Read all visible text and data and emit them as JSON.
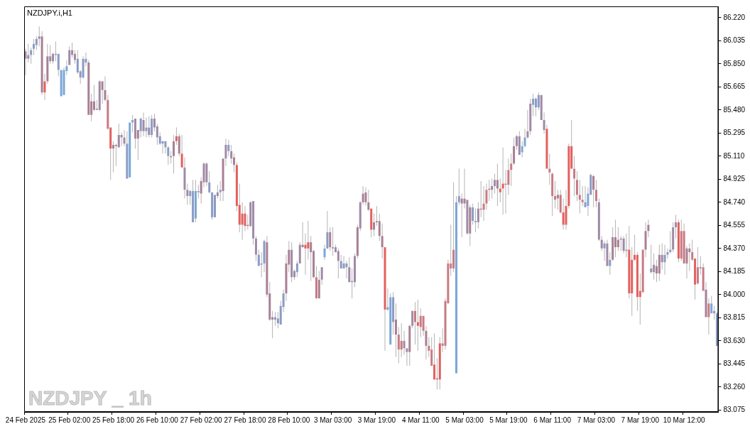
{
  "chart_data": {
    "type": "candlestick",
    "title": "NZDJPY.i,H1",
    "annotations": [
      "NZDJPY _ 1h"
    ],
    "ylim": [
      83.06,
      86.31
    ],
    "yticks": [
      {
        "value": 83.075,
        "label": "83.075"
      },
      {
        "value": 83.26,
        "label": "83.260"
      },
      {
        "value": 83.445,
        "label": "83.445"
      },
      {
        "value": 83.63,
        "label": "83.630"
      },
      {
        "value": 83.815,
        "label": "83.815"
      },
      {
        "value": 84.0,
        "label": "84.000"
      },
      {
        "value": 84.185,
        "label": "84.185"
      },
      {
        "value": 84.37,
        "label": "84.370"
      },
      {
        "value": 84.555,
        "label": "84.555"
      },
      {
        "value": 84.74,
        "label": "84.740"
      },
      {
        "value": 84.925,
        "label": "84.925"
      },
      {
        "value": 85.11,
        "label": "85.110"
      },
      {
        "value": 85.295,
        "label": "85.295"
      },
      {
        "value": 85.48,
        "label": "85.480"
      },
      {
        "value": 85.665,
        "label": "85.665"
      },
      {
        "value": 85.85,
        "label": "85.850"
      },
      {
        "value": 86.035,
        "label": "86.035"
      },
      {
        "value": 86.22,
        "label": "86.220"
      }
    ],
    "categories": [
      "24 Feb 2025",
      null,
      null,
      null,
      null,
      null,
      null,
      null,
      null,
      null,
      null,
      null,
      null,
      null,
      null,
      null,
      "25 Feb 02:00",
      null,
      null,
      null,
      null,
      null,
      null,
      null,
      null,
      null,
      null,
      null,
      null,
      null,
      null,
      null,
      "25 Feb 18:00",
      null,
      null,
      null,
      null,
      null,
      null,
      null,
      null,
      null,
      null,
      null,
      null,
      null,
      null,
      null,
      "26 Feb 10:00",
      null,
      null,
      null,
      null,
      null,
      null,
      null,
      null,
      null,
      null,
      null,
      null,
      null,
      null,
      null,
      "27 Feb 02:00",
      null,
      null,
      null,
      null,
      null,
      null,
      null,
      null,
      null,
      null,
      null,
      null,
      null,
      null,
      null,
      "27 Feb 18:00",
      null,
      null,
      null,
      null,
      null,
      null,
      null,
      null,
      null,
      null,
      null,
      null,
      null,
      null,
      null,
      "28 Feb 10:00",
      null,
      null,
      null,
      null,
      null,
      null,
      null,
      null,
      null,
      null,
      null,
      null,
      null,
      null,
      null,
      "3 Mar 03:00",
      null,
      null,
      null,
      null,
      null,
      null,
      null,
      null,
      null,
      null,
      null,
      null,
      null,
      null,
      null,
      "3 Mar 19:00",
      null,
      null,
      null,
      null,
      null,
      null,
      null,
      null,
      null,
      null,
      null,
      null,
      null,
      null,
      null,
      "4 Mar 11:00",
      null,
      null,
      null,
      null,
      null,
      null,
      null,
      null,
      null,
      null,
      null,
      null,
      null,
      null,
      null,
      "5 Mar 03:00",
      null,
      null,
      null,
      null,
      null,
      null,
      null,
      null,
      null,
      null,
      null,
      null,
      null,
      null,
      null,
      "5 Mar 19:00",
      null,
      null,
      null,
      null,
      null,
      null,
      null,
      null,
      null,
      null,
      null,
      null,
      null,
      null,
      null,
      "6 Mar 11:00",
      null,
      null,
      null,
      null,
      null,
      null,
      null,
      null,
      null,
      null,
      null,
      null,
      null,
      null,
      null,
      "7 Mar 03:00",
      null,
      null,
      null,
      null,
      null,
      null,
      null,
      null,
      null,
      null,
      null,
      null,
      null,
      null,
      null,
      "7 Mar 19:00",
      null,
      null,
      null,
      null,
      null,
      null,
      null,
      null,
      null,
      null,
      null,
      null,
      null,
      null,
      null,
      "10 Mar 12:00",
      null,
      null,
      null,
      null,
      null,
      null,
      null,
      null,
      null,
      null,
      null,
      null
    ],
    "ohlc": [
      [
        85.89,
        85.97,
        85.76,
        85.95
      ],
      [
        85.89,
        86.01,
        85.86,
        85.92
      ],
      [
        85.92,
        85.98,
        85.85,
        85.96
      ],
      [
        85.97,
        86.05,
        85.92,
        86.01
      ],
      [
        86.0,
        86.07,
        85.96,
        86.05
      ],
      [
        86.05,
        86.15,
        85.99,
        86.07
      ],
      [
        86.07,
        86.11,
        85.6,
        85.62
      ],
      [
        85.71,
        85.77,
        85.56,
        85.62
      ],
      [
        85.91,
        86.01,
        85.69,
        85.71
      ],
      [
        85.87,
        86.0,
        85.85,
        85.91
      ],
      [
        85.87,
        85.94,
        85.85,
        85.93
      ],
      [
        85.92,
        86.03,
        85.87,
        85.93
      ],
      [
        85.8,
        85.93,
        85.75,
        85.93
      ],
      [
        85.59,
        85.8,
        85.59,
        85.8
      ],
      [
        85.6,
        85.82,
        85.6,
        85.8
      ],
      [
        85.79,
        85.88,
        85.76,
        85.83
      ],
      [
        85.84,
        85.99,
        85.84,
        85.96
      ],
      [
        85.92,
        86.02,
        85.9,
        85.96
      ],
      [
        85.88,
        85.96,
        85.85,
        85.93
      ],
      [
        85.78,
        85.96,
        85.77,
        85.89
      ],
      [
        85.74,
        85.8,
        85.69,
        85.79
      ],
      [
        85.74,
        85.91,
        85.73,
        85.89
      ],
      [
        85.86,
        85.94,
        85.83,
        85.89
      ],
      [
        85.86,
        85.88,
        85.44,
        85.44
      ],
      [
        85.55,
        85.61,
        85.39,
        85.44
      ],
      [
        85.55,
        85.68,
        85.47,
        85.48
      ],
      [
        85.48,
        85.56,
        85.48,
        85.49
      ],
      [
        85.48,
        85.72,
        85.47,
        85.71
      ],
      [
        85.71,
        85.71,
        85.53,
        85.64
      ],
      [
        85.64,
        85.75,
        85.55,
        85.56
      ],
      [
        85.56,
        85.6,
        85.32,
        85.33
      ],
      [
        85.34,
        85.34,
        84.92,
        85.17
      ],
      [
        85.2,
        85.23,
        84.98,
        85.17
      ],
      [
        85.19,
        85.21,
        85.03,
        85.2
      ],
      [
        85.18,
        85.37,
        85.18,
        85.28
      ],
      [
        85.26,
        85.3,
        85.19,
        85.28
      ],
      [
        85.21,
        85.32,
        85.19,
        85.26
      ],
      [
        84.93,
        85.31,
        84.93,
        85.21
      ],
      [
        84.94,
        85.38,
        84.94,
        85.38
      ],
      [
        85.38,
        85.44,
        85.3,
        85.4
      ],
      [
        85.25,
        85.41,
        85.17,
        85.41
      ],
      [
        85.32,
        85.32,
        85.08,
        85.25
      ],
      [
        85.31,
        85.42,
        85.26,
        85.41
      ],
      [
        85.31,
        85.46,
        85.27,
        85.4
      ],
      [
        85.31,
        85.42,
        85.26,
        85.34
      ],
      [
        85.28,
        85.43,
        85.26,
        85.34
      ],
      [
        85.28,
        85.44,
        85.26,
        85.41
      ],
      [
        85.34,
        85.45,
        85.31,
        85.41
      ],
      [
        85.26,
        85.37,
        85.2,
        85.35
      ],
      [
        85.21,
        85.3,
        85.2,
        85.27
      ],
      [
        85.21,
        85.23,
        85.13,
        85.23
      ],
      [
        85.18,
        85.23,
        85.13,
        85.23
      ],
      [
        85.11,
        85.19,
        85.04,
        85.18
      ],
      [
        85.1,
        85.15,
        85.05,
        85.11
      ],
      [
        85.23,
        85.28,
        84.97,
        85.11
      ],
      [
        85.27,
        85.34,
        85.2,
        85.23
      ],
      [
        85.27,
        85.29,
        85.11,
        85.13
      ],
      [
        85.13,
        85.28,
        85.02,
        85.02
      ],
      [
        84.84,
        85.1,
        84.77,
        85.02
      ],
      [
        84.79,
        84.89,
        84.72,
        84.84
      ],
      [
        84.79,
        84.84,
        84.72,
        84.83
      ],
      [
        84.58,
        84.92,
        84.58,
        84.83
      ],
      [
        84.61,
        84.92,
        84.58,
        84.83
      ],
      [
        84.82,
        84.88,
        84.77,
        84.83
      ],
      [
        84.91,
        84.94,
        84.73,
        84.81
      ],
      [
        84.9,
        85.06,
        84.86,
        85.05
      ],
      [
        84.9,
        85.06,
        84.87,
        85.05
      ],
      [
        84.82,
        84.99,
        84.81,
        84.9
      ],
      [
        84.62,
        84.82,
        84.6,
        84.82
      ],
      [
        84.62,
        84.8,
        84.62,
        84.8
      ],
      [
        84.79,
        84.88,
        84.77,
        84.82
      ],
      [
        84.82,
        84.91,
        84.75,
        84.84
      ],
      [
        85.09,
        85.09,
        84.75,
        84.83
      ],
      [
        85.09,
        85.25,
        85.03,
        85.2
      ],
      [
        85.15,
        85.24,
        85.11,
        85.2
      ],
      [
        85.09,
        85.2,
        85.05,
        85.15
      ],
      [
        85.1,
        85.13,
        84.98,
        85.04
      ],
      [
        85.04,
        85.06,
        84.67,
        84.71
      ],
      [
        84.72,
        84.89,
        84.5,
        84.56
      ],
      [
        84.65,
        84.74,
        84.44,
        84.56
      ],
      [
        84.65,
        84.71,
        84.51,
        84.55
      ],
      [
        84.56,
        84.64,
        84.52,
        84.55
      ],
      [
        84.55,
        84.75,
        84.54,
        84.74
      ],
      [
        84.45,
        84.75,
        84.4,
        84.75
      ],
      [
        84.32,
        84.47,
        84.27,
        84.45
      ],
      [
        84.23,
        84.36,
        84.23,
        84.32
      ],
      [
        84.24,
        84.34,
        84.14,
        84.25
      ],
      [
        84.25,
        84.44,
        84.18,
        84.43
      ],
      [
        84.42,
        84.47,
        83.98,
        84.0
      ],
      [
        84.01,
        84.1,
        83.79,
        83.8
      ],
      [
        83.82,
        83.87,
        83.65,
        83.8
      ],
      [
        83.8,
        83.86,
        83.75,
        83.82
      ],
      [
        83.77,
        83.86,
        83.73,
        83.81
      ],
      [
        83.76,
        83.95,
        83.76,
        83.91
      ],
      [
        83.9,
        84.04,
        83.86,
        84.01
      ],
      [
        84.25,
        84.32,
        83.95,
        84.01
      ],
      [
        84.36,
        84.43,
        84.18,
        84.24
      ],
      [
        84.14,
        84.42,
        84.1,
        84.36
      ],
      [
        84.14,
        84.2,
        84.12,
        84.19
      ],
      [
        84.18,
        84.27,
        84.14,
        84.25
      ],
      [
        84.25,
        84.42,
        84.25,
        84.4
      ],
      [
        84.4,
        84.58,
        84.38,
        84.38
      ],
      [
        84.4,
        84.49,
        84.16,
        84.37
      ],
      [
        84.42,
        84.59,
        84.28,
        84.37
      ],
      [
        84.42,
        84.47,
        84.11,
        84.34
      ],
      [
        84.35,
        84.36,
        84.13,
        84.14
      ],
      [
        84.14,
        84.23,
        83.97,
        83.97
      ],
      [
        84.12,
        84.19,
        83.97,
        83.97
      ],
      [
        84.12,
        84.22,
        84.08,
        84.22
      ],
      [
        84.3,
        84.4,
        84.28,
        84.37
      ],
      [
        84.37,
        84.67,
        84.37,
        84.5
      ],
      [
        84.5,
        84.54,
        84.35,
        84.38
      ],
      [
        84.37,
        84.54,
        84.31,
        84.38
      ],
      [
        84.34,
        84.4,
        84.34,
        84.38
      ],
      [
        84.27,
        84.37,
        84.13,
        84.35
      ],
      [
        84.21,
        84.32,
        84.21,
        84.27
      ],
      [
        84.21,
        84.31,
        84.21,
        84.25
      ],
      [
        84.22,
        84.27,
        84.13,
        84.25
      ],
      [
        84.1,
        84.3,
        84.1,
        84.22
      ],
      [
        84.1,
        84.21,
        83.97,
        84.11
      ],
      [
        84.1,
        84.33,
        84.06,
        84.31
      ],
      [
        84.54,
        84.56,
        84.29,
        84.31
      ],
      [
        84.53,
        84.75,
        84.51,
        84.74
      ],
      [
        84.81,
        84.87,
        84.72,
        84.74
      ],
      [
        84.82,
        84.86,
        84.71,
        84.74
      ],
      [
        84.74,
        84.84,
        84.67,
        84.68
      ],
      [
        84.69,
        84.69,
        84.46,
        84.52
      ],
      [
        84.58,
        84.65,
        84.47,
        84.52
      ],
      [
        84.59,
        84.71,
        84.55,
        84.58
      ],
      [
        84.59,
        84.65,
        84.43,
        84.47
      ],
      [
        84.47,
        84.57,
        84.29,
        84.38
      ],
      [
        84.38,
        84.38,
        83.55,
        83.88
      ],
      [
        83.88,
        84.05,
        83.87,
        83.9
      ],
      [
        83.6,
        84.01,
        83.6,
        83.98
      ],
      [
        83.78,
        84.02,
        83.68,
        83.98
      ],
      [
        83.8,
        83.93,
        83.5,
        83.68
      ],
      [
        83.68,
        83.74,
        83.45,
        83.56
      ],
      [
        83.63,
        83.77,
        83.5,
        83.56
      ],
      [
        83.57,
        83.71,
        83.52,
        83.63
      ],
      [
        83.54,
        83.57,
        83.43,
        83.57
      ],
      [
        83.75,
        83.76,
        83.43,
        83.54
      ],
      [
        83.75,
        83.87,
        83.73,
        83.87
      ],
      [
        83.87,
        83.94,
        83.6,
        83.78
      ],
      [
        83.78,
        83.96,
        83.55,
        83.75
      ],
      [
        83.83,
        83.89,
        83.66,
        83.74
      ],
      [
        83.83,
        83.83,
        83.67,
        83.71
      ],
      [
        83.71,
        83.75,
        83.48,
        83.59
      ],
      [
        83.59,
        83.66,
        83.5,
        83.55
      ],
      [
        83.56,
        83.66,
        83.43,
        83.43
      ],
      [
        83.44,
        83.69,
        83.32,
        83.32
      ],
      [
        83.33,
        83.49,
        83.24,
        83.32
      ],
      [
        83.61,
        83.66,
        83.24,
        83.32
      ],
      [
        83.61,
        83.73,
        83.54,
        83.59
      ],
      [
        83.95,
        83.97,
        83.56,
        83.59
      ],
      [
        84.25,
        84.28,
        83.93,
        83.93
      ],
      [
        84.25,
        84.56,
        84.15,
        84.21
      ],
      [
        84.36,
        84.9,
        84.18,
        84.21
      ],
      [
        83.37,
        84.79,
        83.37,
        84.74
      ],
      [
        84.74,
        85.01,
        84.72,
        84.79
      ],
      [
        84.77,
        84.81,
        84.46,
        84.73
      ],
      [
        84.77,
        85.01,
        84.69,
        84.73
      ],
      [
        84.49,
        84.76,
        84.48,
        84.76
      ],
      [
        84.7,
        84.72,
        84.39,
        84.49
      ],
      [
        84.59,
        84.73,
        84.56,
        84.7
      ],
      [
        84.58,
        84.69,
        84.5,
        84.59
      ],
      [
        84.58,
        84.74,
        84.53,
        84.69
      ],
      [
        84.69,
        84.91,
        84.62,
        84.68
      ],
      [
        84.73,
        84.87,
        84.59,
        84.68
      ],
      [
        84.84,
        84.89,
        84.68,
        84.73
      ],
      [
        84.85,
        84.92,
        84.75,
        84.84
      ],
      [
        84.87,
        84.93,
        84.77,
        84.84
      ],
      [
        84.87,
        84.97,
        84.81,
        84.92
      ],
      [
        84.92,
        85.05,
        84.71,
        84.85
      ],
      [
        84.85,
        84.93,
        84.74,
        84.82
      ],
      [
        84.89,
        85.18,
        84.64,
        84.85
      ],
      [
        84.89,
        85.0,
        84.65,
        84.88
      ],
      [
        85.0,
        85.09,
        84.8,
        84.88
      ],
      [
        85.05,
        85.13,
        84.87,
        85.0
      ],
      [
        85.19,
        85.26,
        85.04,
        85.05
      ],
      [
        85.19,
        85.28,
        85.16,
        85.27
      ],
      [
        85.12,
        85.31,
        85.12,
        85.27
      ],
      [
        85.14,
        85.23,
        85.1,
        85.19
      ],
      [
        85.19,
        85.33,
        85.18,
        85.26
      ],
      [
        85.26,
        85.48,
        85.25,
        85.31
      ],
      [
        85.31,
        85.57,
        85.28,
        85.53
      ],
      [
        85.52,
        85.61,
        85.43,
        85.57
      ],
      [
        85.5,
        85.58,
        85.43,
        85.57
      ],
      [
        85.5,
        85.62,
        85.48,
        85.6
      ],
      [
        85.4,
        85.6,
        85.4,
        85.6
      ],
      [
        85.32,
        85.46,
        85.29,
        85.4
      ],
      [
        85.33,
        85.36,
        85.01,
        85.01
      ],
      [
        85.01,
        85.13,
        84.88,
        84.98
      ],
      [
        84.97,
        84.98,
        84.63,
        84.79
      ],
      [
        84.79,
        84.91,
        84.69,
        84.76
      ],
      [
        84.8,
        84.84,
        84.68,
        84.77
      ],
      [
        84.8,
        84.84,
        84.65,
        84.66
      ],
      [
        84.66,
        84.77,
        84.52,
        84.56
      ],
      [
        84.71,
        84.84,
        84.52,
        84.56
      ],
      [
        85.19,
        85.21,
        84.69,
        84.71
      ],
      [
        85.19,
        85.4,
        85.01,
        85.01
      ],
      [
        85.01,
        85.11,
        84.79,
        84.93
      ],
      [
        84.92,
        84.99,
        84.75,
        84.8
      ],
      [
        84.8,
        84.92,
        84.65,
        84.76
      ],
      [
        84.76,
        84.87,
        84.71,
        84.74
      ],
      [
        84.7,
        84.87,
        84.7,
        84.74
      ],
      [
        84.71,
        84.86,
        84.63,
        84.81
      ],
      [
        84.8,
        84.97,
        84.8,
        84.96
      ],
      [
        84.95,
        84.96,
        84.7,
        84.84
      ],
      [
        84.84,
        84.92,
        84.7,
        84.75
      ],
      [
        84.44,
        84.77,
        84.43,
        84.74
      ],
      [
        84.37,
        84.47,
        84.35,
        84.44
      ],
      [
        84.37,
        84.43,
        84.27,
        84.41
      ],
      [
        84.23,
        84.44,
        84.23,
        84.41
      ],
      [
        84.23,
        84.34,
        84.16,
        84.28
      ],
      [
        84.46,
        84.54,
        84.27,
        84.28
      ],
      [
        84.46,
        84.6,
        84.3,
        84.38
      ],
      [
        84.44,
        84.54,
        84.35,
        84.38
      ],
      [
        84.44,
        84.47,
        84.35,
        84.45
      ],
      [
        84.35,
        84.47,
        84.33,
        84.45
      ],
      [
        84.35,
        84.49,
        84.3,
        84.36
      ],
      [
        84.36,
        84.55,
        83.97,
        84.01
      ],
      [
        84.28,
        84.38,
        83.83,
        84.01
      ],
      [
        84.32,
        84.48,
        84.27,
        84.28
      ],
      [
        84.32,
        84.34,
        83.87,
        83.98
      ],
      [
        84.03,
        84.17,
        83.76,
        83.98
      ],
      [
        84.36,
        84.36,
        84.01,
        84.02
      ],
      [
        84.51,
        84.58,
        84.3,
        84.36
      ],
      [
        84.56,
        84.6,
        84.46,
        84.51
      ],
      [
        84.18,
        84.4,
        84.17,
        84.21
      ],
      [
        84.18,
        84.33,
        84.12,
        84.24
      ],
      [
        84.23,
        84.28,
        84.1,
        84.17
      ],
      [
        84.32,
        84.4,
        84.11,
        84.17
      ],
      [
        84.26,
        84.41,
        84.2,
        84.32
      ],
      [
        84.26,
        84.4,
        84.16,
        84.32
      ],
      [
        84.32,
        84.37,
        84.29,
        84.34
      ],
      [
        84.34,
        84.51,
        84.33,
        84.36
      ],
      [
        84.36,
        84.58,
        84.34,
        84.54
      ],
      [
        84.54,
        84.64,
        84.45,
        84.58
      ],
      [
        84.58,
        84.6,
        84.26,
        84.29
      ],
      [
        84.51,
        84.6,
        84.27,
        84.29
      ],
      [
        84.51,
        84.57,
        84.25,
        84.25
      ],
      [
        84.37,
        84.39,
        84.13,
        84.25
      ],
      [
        84.37,
        84.41,
        84.19,
        84.34
      ],
      [
        84.34,
        84.44,
        84.27,
        84.28
      ],
      [
        84.29,
        84.29,
        83.96,
        84.08
      ],
      [
        84.22,
        84.38,
        84.08,
        84.09
      ],
      [
        84.22,
        84.31,
        84.16,
        84.21
      ],
      [
        84.22,
        84.25,
        84.03,
        84.03
      ],
      [
        84.04,
        84.1,
        83.82,
        83.82
      ],
      [
        83.93,
        83.97,
        83.68,
        83.82
      ],
      [
        83.85,
        83.99,
        83.85,
        83.93
      ],
      [
        83.85,
        83.91,
        83.8,
        83.87
      ],
      [
        83.59,
        83.86,
        83.59,
        83.85
      ]
    ],
    "colors": [
      "#a08aa6",
      "#a08aa6",
      "#8b9bc4",
      "#8b9bc4",
      "#8b9bc4",
      "#a08aa6",
      "#a88094",
      "#e2605e",
      "#a88094",
      "#a08aa6",
      "#a08aa6",
      "#8b9bc4",
      "#8b9bc4",
      "#7ba7d7",
      "#7ba7d7",
      "#7ba7d7",
      "#a08aa6",
      "#a08aa6",
      "#a08aa6",
      "#8b9bc4",
      "#8b9bc4",
      "#8b9bc4",
      "#8b9bc4",
      "#a88094",
      "#a88094",
      "#a88094",
      "#a08aa6",
      "#a08aa6",
      "#a88094",
      "#a88094",
      "#c87a84",
      "#e2605e",
      "#a88094",
      "#a08aa6",
      "#a08aa6",
      "#a08aa6",
      "#a08aa6",
      "#8b9bc4",
      "#7ba7d7",
      "#7ba7d7",
      "#a08aa6",
      "#a88094",
      "#8b9bc4",
      "#a08aa6",
      "#8b9bc4",
      "#a08aa6",
      "#8b9bc4",
      "#a08aa6",
      "#a08aa6",
      "#8b9bc4",
      "#8b9bc4",
      "#8b9bc4",
      "#8b9bc4",
      "#a08aa6",
      "#a88094",
      "#e2605e",
      "#a88094",
      "#e2605e",
      "#a08aa6",
      "#a08aa6",
      "#8b9bc4",
      "#8b9bc4",
      "#7ba7d7",
      "#8b9bc4",
      "#a88094",
      "#a08aa6",
      "#a08aa6",
      "#8b9bc4",
      "#8b9bc4",
      "#8b9bc4",
      "#a08aa6",
      "#8b9bc4",
      "#a88094",
      "#a08aa6",
      "#8b9bc4",
      "#a08aa6",
      "#a88094",
      "#e2605e",
      "#e2605e",
      "#e2605e",
      "#e2605e",
      "#a88094",
      "#a08aa6",
      "#a08aa6",
      "#a08aa6",
      "#8b9bc4",
      "#8b9bc4",
      "#8b9bc4",
      "#a88094",
      "#a88094",
      "#a88094",
      "#8b9bc4",
      "#8b9bc4",
      "#8b9bc4",
      "#8b9bc4",
      "#a88094",
      "#a88094",
      "#a08aa6",
      "#a08aa6",
      "#8b9bc4",
      "#a08aa6",
      "#a88094",
      "#e2605e",
      "#e2605e",
      "#a88094",
      "#a88094",
      "#c87a84",
      "#a88094",
      "#a08aa6",
      "#7ba7d7",
      "#8b9bc4",
      "#a88094",
      "#a08aa6",
      "#a08aa6",
      "#a08aa6",
      "#8b9bc4",
      "#8b9bc4",
      "#8b9bc4",
      "#a08aa6",
      "#a08aa6",
      "#a08aa6",
      "#a88094",
      "#a08aa6",
      "#a88094",
      "#a88094",
      "#a88094",
      "#e2605e",
      "#a88094",
      "#a88094",
      "#a88094",
      "#a88094",
      "#e2605e",
      "#8b9bc4",
      "#7ba7d7",
      "#8b9bc4",
      "#a88094",
      "#c87a84",
      "#c87a84",
      "#a08aa6",
      "#a08aa6",
      "#a88094",
      "#a08aa6",
      "#c87a84",
      "#e2605e",
      "#c87a84",
      "#c87a84",
      "#a88094",
      "#c87a84",
      "#c87a84",
      "#e2605e",
      "#e2605e",
      "#e2605e",
      "#c87a84",
      "#c87a84",
      "#c87a84",
      "#c87a84",
      "#c87a84",
      "#7ba7d7",
      "#8b9bc4",
      "#a88094",
      "#a88094",
      "#a08aa6",
      "#a88094",
      "#8b9bc4",
      "#8b9bc4",
      "#a08aa6",
      "#c87a84",
      "#c87a84",
      "#c87a84",
      "#c87a84",
      "#a88094",
      "#a08aa6",
      "#a88094",
      "#e2605e",
      "#e2605e",
      "#c87a84",
      "#c87a84",
      "#c87a84",
      "#a88094",
      "#a08aa6",
      "#a08aa6",
      "#7ba7d7",
      "#7ba7d7",
      "#a08aa6",
      "#a08aa6",
      "#8b9bc4",
      "#8b9bc4",
      "#8b9bc4",
      "#a08aa6",
      "#a08aa6",
      "#e2605e",
      "#c87a84",
      "#c87a84",
      "#c87a84",
      "#a88094",
      "#c87a84",
      "#e2605e",
      "#e2605e",
      "#e2605e",
      "#e2605e",
      "#c87a84",
      "#c87a84",
      "#c87a84",
      "#c87a84",
      "#8b9bc4",
      "#7ba7d7",
      "#8b9bc4",
      "#a88094",
      "#c87a84",
      "#a08aa6",
      "#a08aa6",
      "#8b9bc4",
      "#a08aa6",
      "#8b9bc4",
      "#a88094",
      "#a88094",
      "#a88094",
      "#a08aa6",
      "#a08aa6",
      "#a08aa6",
      "#e2605e",
      "#e2605e",
      "#e2605e",
      "#e2605e",
      "#e2605e",
      "#c87a84",
      "#a88094",
      "#a88094",
      "#a08aa6",
      "#a08aa6",
      "#a88094",
      "#a88094",
      "#a08aa6",
      "#8b9bc4",
      "#8b9bc4",
      "#8b9bc4",
      "#a08aa6",
      "#a08aa6",
      "#e2605e",
      "#c87a84",
      "#c87a84",
      "#a88094",
      "#a88094",
      "#c87a84",
      "#e2605e",
      "#c87a84",
      "#a88094",
      "#c87a84",
      "#a88094",
      "#c87a84",
      "#7ba7d7",
      "#8b9bc4",
      "#8b9bc4"
    ]
  }
}
